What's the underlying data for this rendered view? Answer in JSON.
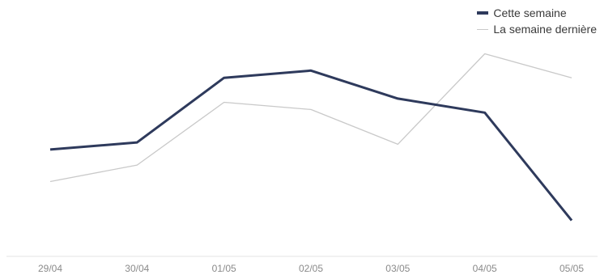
{
  "chart_data": {
    "type": "line",
    "title": "",
    "xlabel": "",
    "ylabel": "",
    "categories": [
      "29/04",
      "30/04",
      "01/05",
      "02/05",
      "03/05",
      "04/05",
      "05/05"
    ],
    "ylim": [
      0,
      100
    ],
    "grid": false,
    "legend": "top-right",
    "series": [
      {
        "name": "Cette semaine",
        "color": "#2e3a5c",
        "values": [
          48.1,
          51.9,
          86.8,
          90.7,
          75.6,
          68.0,
          9.8
        ]
      },
      {
        "name": "La semaine dernière",
        "color": "#c9c9c9",
        "values": [
          30.8,
          39.7,
          73.6,
          69.7,
          50.9,
          99.8,
          86.8
        ]
      }
    ]
  }
}
